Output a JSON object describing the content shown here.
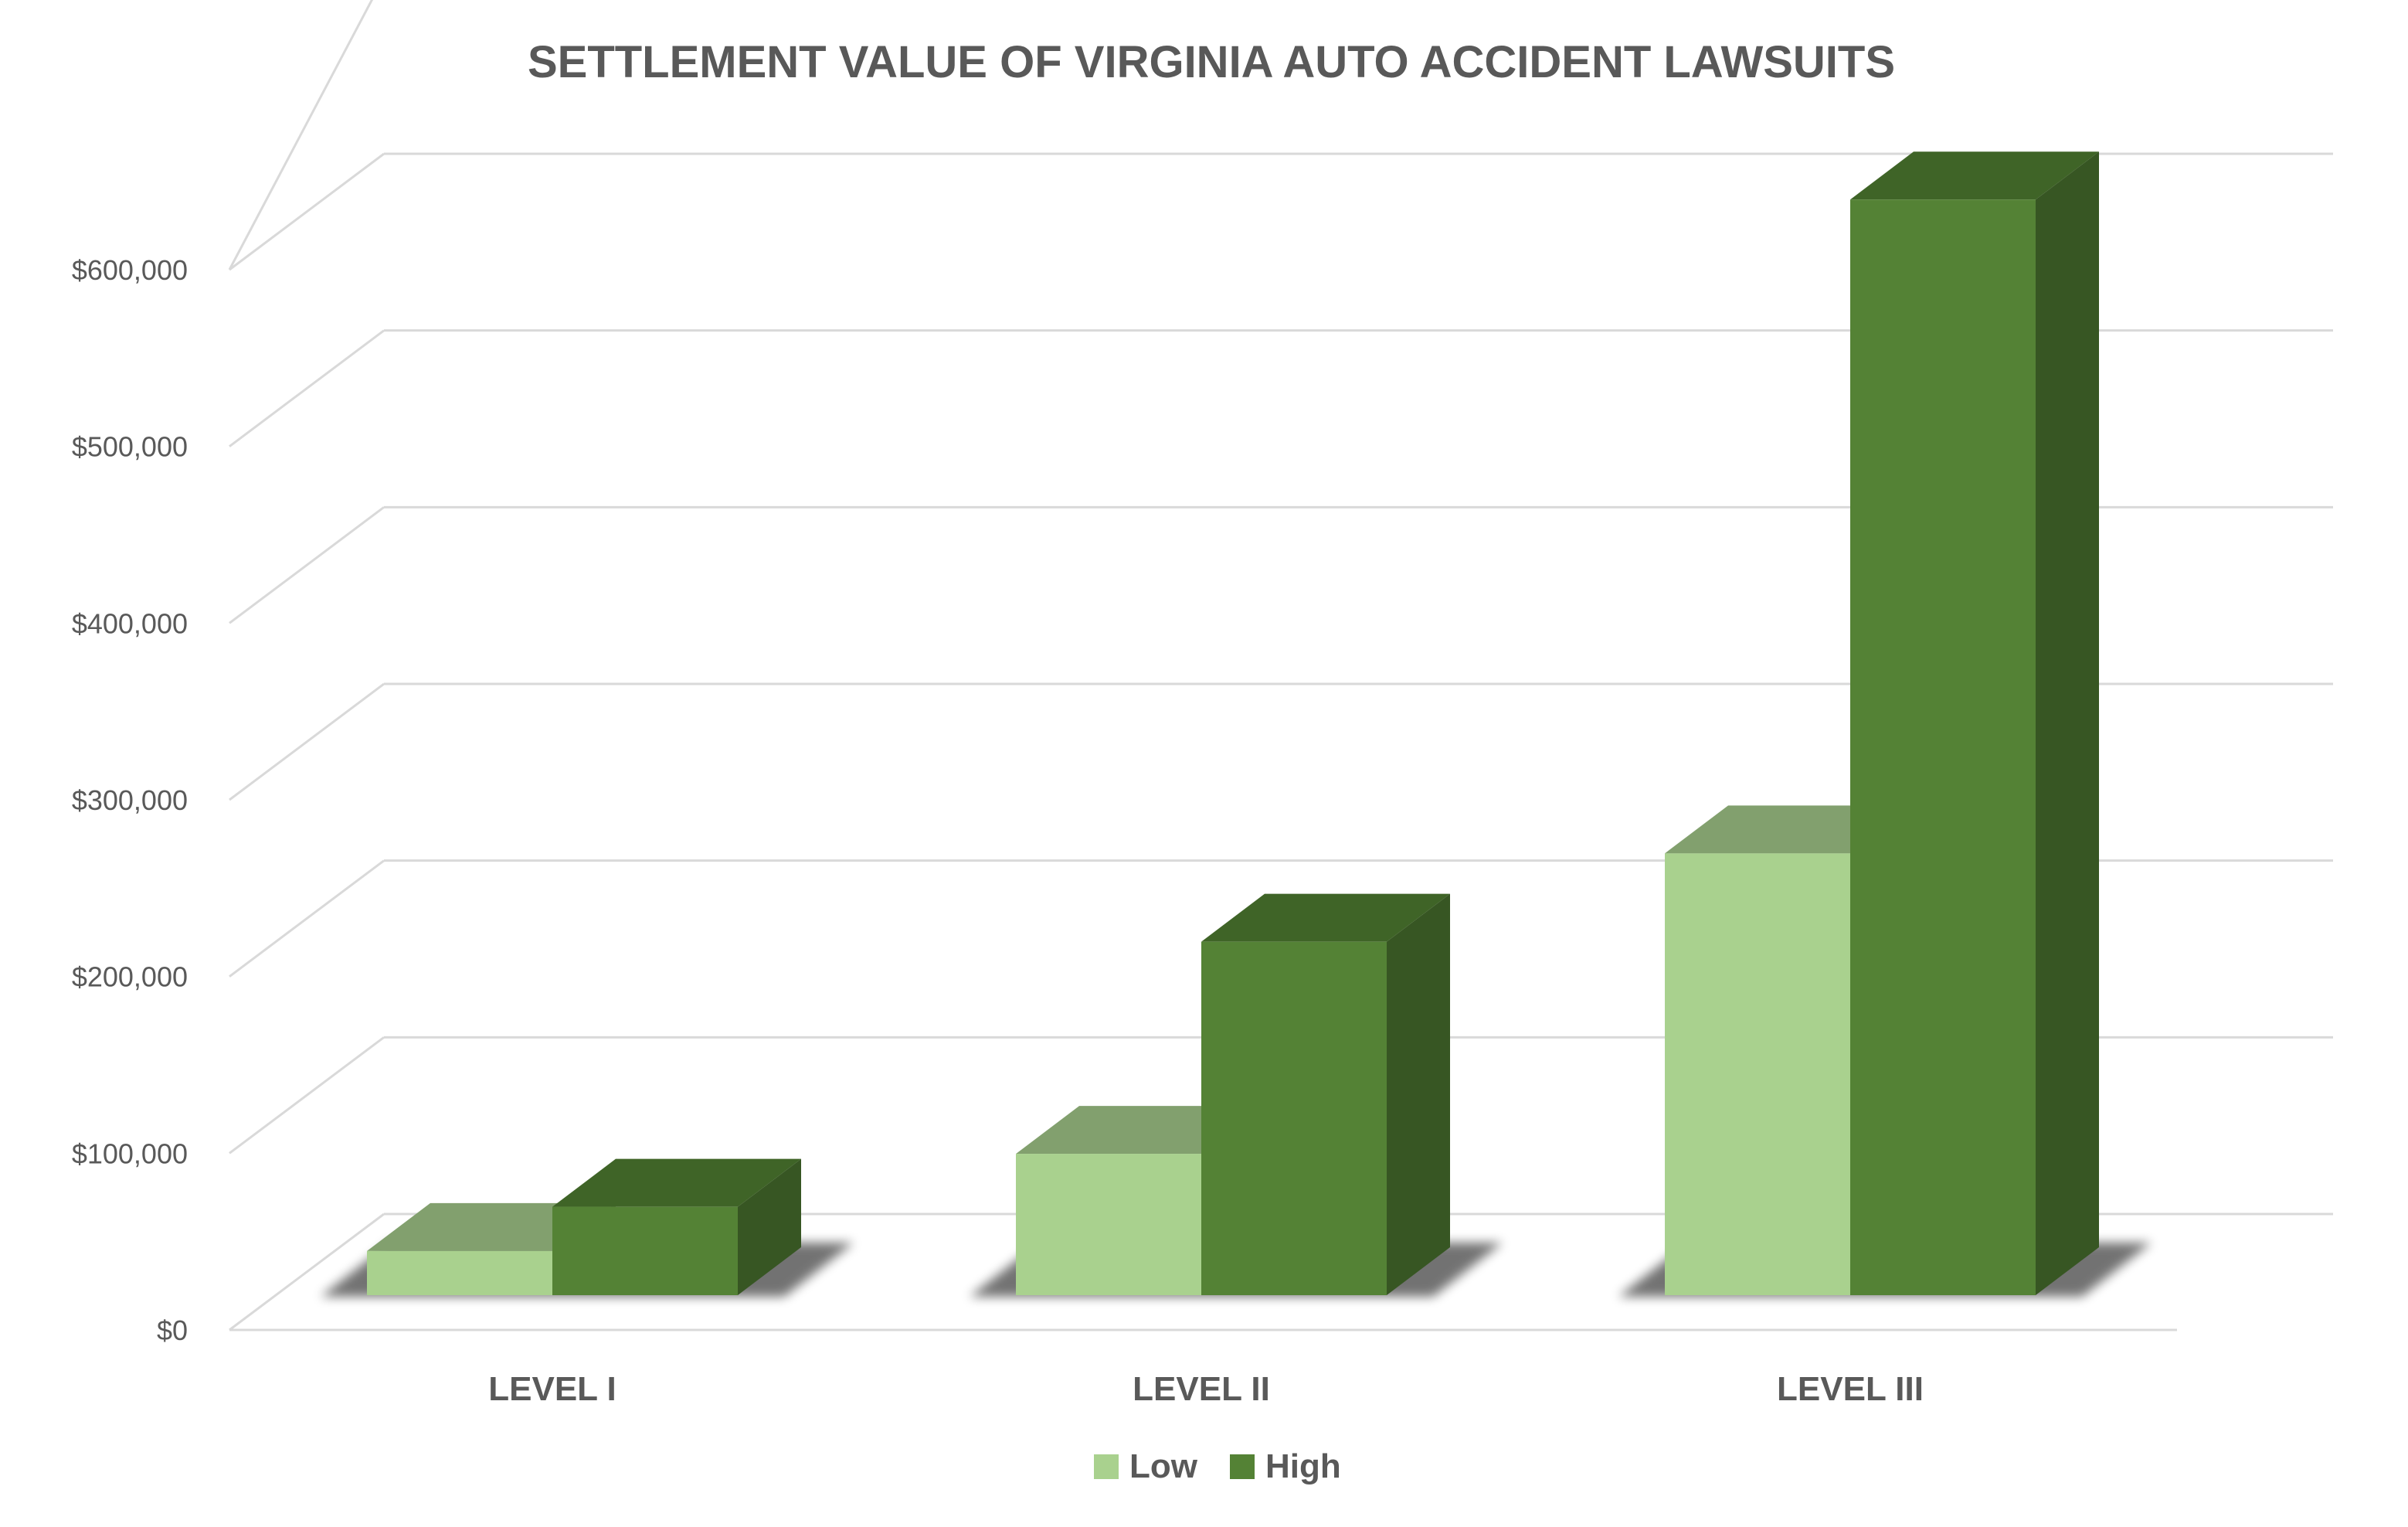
{
  "chart_data": {
    "type": "bar",
    "title": "SETTLEMENT VALUE OF VIRGINIA AUTO ACCIDENT LAWSUITS",
    "xlabel": "",
    "ylabel": "",
    "categories": [
      "LEVEL I",
      "LEVEL II",
      "LEVEL III"
    ],
    "series": [
      {
        "name": "Low",
        "values": [
          25000,
          80000,
          250000
        ],
        "color_front": "#A9D18E",
        "color_top": "#82A06E",
        "color_side": "#6F8F5C"
      },
      {
        "name": "High",
        "values": [
          50000,
          200000,
          620000
        ],
        "color_front": "#548235",
        "color_top": "#3F6427",
        "color_side": "#375623"
      }
    ],
    "yticks": [
      "$0",
      "$100,000",
      "$200,000",
      "$300,000",
      "$400,000",
      "$500,000",
      "$600,000"
    ],
    "ylim": [
      0,
      600000
    ],
    "grid": true,
    "legend": "bottom"
  }
}
